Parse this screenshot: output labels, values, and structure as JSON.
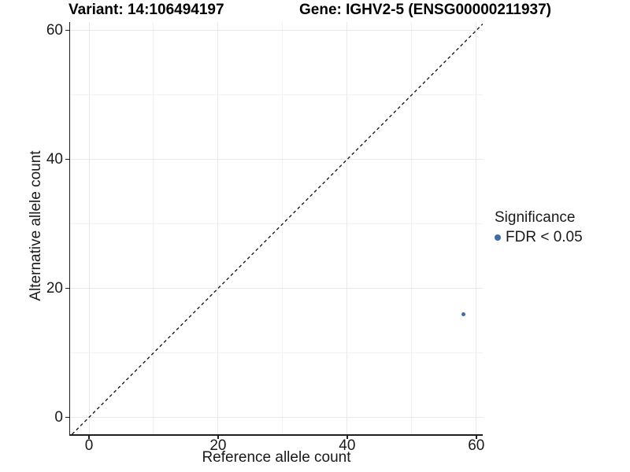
{
  "chart_data": {
    "type": "scatter",
    "titles": {
      "left": "Variant: 14:106494197",
      "right": "Gene: IGHV2-5 (ENSG00000211937)"
    },
    "xlabel": "Reference allele count",
    "ylabel": "Alternative allele count",
    "xlim": [
      -2.93,
      61.0
    ],
    "ylim": [
      -2.62,
      61.3
    ],
    "x_ticks": {
      "major": [
        0,
        20,
        40,
        60
      ],
      "minor": [
        10,
        30,
        50
      ]
    },
    "y_ticks": {
      "major": [
        0,
        20,
        40,
        60
      ],
      "minor": [
        10,
        30,
        50
      ]
    },
    "grid": "major+minor",
    "identity_line": {
      "slope": 1,
      "intercept": 0,
      "style": "dashed",
      "color": "#1a1a1a"
    },
    "series": [
      {
        "name": "FDR < 0.05",
        "color": "#3e6ca3",
        "points": [
          {
            "x": 58,
            "y": 16
          }
        ]
      }
    ],
    "legend": {
      "title": "Significance",
      "position": "right",
      "items": [
        {
          "label": "FDR < 0.05",
          "color": "#3e6ca3"
        }
      ]
    },
    "background": "#ffffff"
  }
}
